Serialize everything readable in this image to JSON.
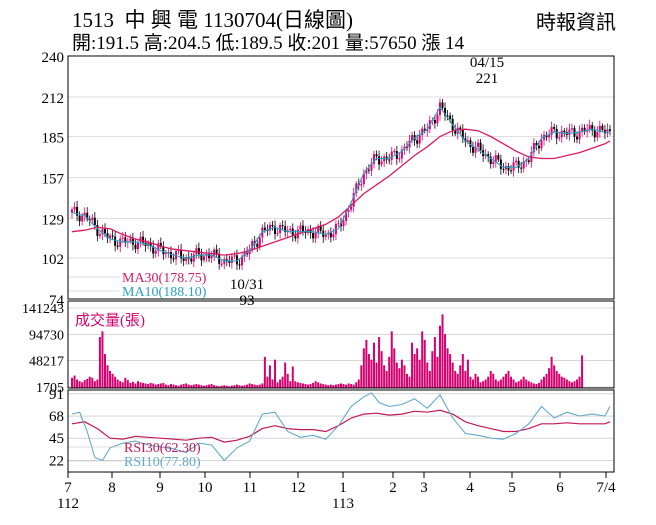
{
  "header": {
    "title": "1513  中 興 電 1130704(日線圖)",
    "source": "時報資訊",
    "ohlc": "開:191.5 高:204.5 低:189.5 收:201 量:57650 漲 14"
  },
  "colors": {
    "up": "#e0007a",
    "down": "#000000",
    "ma30": "#d81b60",
    "ma10": "#2e9fc4",
    "rsi30": "#c2185b",
    "rsi10": "#64a9c9",
    "volume": "#d6006f"
  },
  "chart_data": [
    {
      "type": "candlestick",
      "title": "",
      "ylim": [
        74,
        240
      ],
      "y_ticks": [
        240,
        212,
        185,
        157,
        129,
        102,
        74
      ],
      "legend": [
        {
          "name": "MA30(178.75)",
          "color": "#d81b60"
        },
        {
          "name": "MA10(188.10)",
          "color": "#2e9fc4"
        }
      ],
      "annotations": [
        {
          "text": "04/15",
          "x": "2024-04-15",
          "position": "above"
        },
        {
          "text": "221",
          "x": "2024-04-15",
          "position": "above"
        },
        {
          "text": "10/31",
          "x": "2023-10-31",
          "position": "below"
        },
        {
          "text": "93",
          "x": "2023-10-31",
          "position": "below"
        }
      ],
      "x_ticks": [
        "7",
        "8",
        "9",
        "10",
        "11",
        "12",
        "1",
        "2",
        "3",
        "4",
        "5",
        "6",
        "7/4"
      ],
      "x_year_labels": [
        {
          "text": "112",
          "at": "7"
        },
        {
          "text": "113",
          "at": "1"
        }
      ],
      "ma30": [
        [
          0,
          120
        ],
        [
          5,
          121
        ],
        [
          10,
          123
        ],
        [
          15,
          122
        ],
        [
          20,
          118
        ],
        [
          25,
          115
        ],
        [
          30,
          113
        ],
        [
          35,
          110
        ],
        [
          40,
          108
        ],
        [
          45,
          107
        ],
        [
          50,
          106
        ],
        [
          55,
          105
        ],
        [
          60,
          104
        ],
        [
          65,
          105
        ],
        [
          70,
          107
        ],
        [
          75,
          110
        ],
        [
          80,
          113
        ],
        [
          85,
          116
        ],
        [
          90,
          119
        ],
        [
          95,
          122
        ],
        [
          100,
          125
        ],
        [
          105,
          130
        ],
        [
          110,
          138
        ],
        [
          115,
          146
        ],
        [
          120,
          152
        ],
        [
          125,
          158
        ],
        [
          130,
          165
        ],
        [
          135,
          172
        ],
        [
          140,
          178
        ],
        [
          145,
          185
        ],
        [
          150,
          189
        ],
        [
          155,
          190
        ],
        [
          160,
          189
        ],
        [
          165,
          185
        ],
        [
          170,
          180
        ],
        [
          175,
          175
        ],
        [
          180,
          171
        ],
        [
          185,
          170
        ],
        [
          190,
          170
        ],
        [
          195,
          172
        ],
        [
          200,
          174
        ],
        [
          205,
          177
        ],
        [
          210,
          180
        ],
        [
          212,
          182
        ]
      ],
      "ma10": [
        [
          0,
          133
        ],
        [
          5,
          131
        ],
        [
          10,
          122
        ],
        [
          15,
          115
        ],
        [
          20,
          113
        ],
        [
          25,
          113
        ],
        [
          30,
          111
        ],
        [
          35,
          107
        ],
        [
          40,
          104
        ],
        [
          45,
          102
        ],
        [
          50,
          104
        ],
        [
          55,
          104
        ],
        [
          60,
          100
        ],
        [
          65,
          100
        ],
        [
          70,
          107
        ],
        [
          75,
          120
        ],
        [
          80,
          123
        ],
        [
          85,
          120
        ],
        [
          90,
          120
        ],
        [
          95,
          120
        ],
        [
          100,
          118
        ],
        [
          105,
          122
        ],
        [
          110,
          140
        ],
        [
          115,
          160
        ],
        [
          120,
          170
        ],
        [
          125,
          170
        ],
        [
          130,
          175
        ],
        [
          135,
          184
        ],
        [
          140,
          190
        ],
        [
          145,
          205
        ],
        [
          150,
          193
        ],
        [
          155,
          182
        ],
        [
          160,
          176
        ],
        [
          165,
          170
        ],
        [
          170,
          164
        ],
        [
          175,
          164
        ],
        [
          180,
          170
        ],
        [
          185,
          184
        ],
        [
          190,
          188
        ],
        [
          195,
          187
        ],
        [
          200,
          188
        ],
        [
          205,
          190
        ],
        [
          210,
          188
        ],
        [
          212,
          188
        ]
      ]
    },
    {
      "type": "bar",
      "title": "",
      "ylabel": "成交量(張)",
      "ylim": [
        0,
        141243
      ],
      "y_ticks": [
        141243,
        94730,
        48217,
        1705
      ],
      "values": [
        18000,
        22000,
        15000,
        12000,
        10000,
        14000,
        16000,
        20000,
        18000,
        12000,
        15000,
        90000,
        100000,
        60000,
        40000,
        30000,
        25000,
        20000,
        15000,
        12000,
        10000,
        18000,
        14000,
        9000,
        11000,
        8000,
        12000,
        10000,
        9000,
        8000,
        7000,
        9000,
        8000,
        6000,
        7000,
        8000,
        9000,
        6000,
        5000,
        7000,
        6000,
        5000,
        4000,
        6000,
        7000,
        8000,
        6000,
        5000,
        6000,
        7000,
        6000,
        5000,
        4000,
        5000,
        6000,
        7000,
        5000,
        4000,
        3000,
        4000,
        5000,
        4000,
        3000,
        4000,
        5000,
        6000,
        5000,
        4000,
        5000,
        6000,
        8000,
        7000,
        6000,
        5000,
        6000,
        8000,
        55000,
        20000,
        40000,
        15000,
        50000,
        10000,
        15000,
        20000,
        45000,
        25000,
        12000,
        38000,
        12000,
        10000,
        9000,
        8000,
        7000,
        6000,
        7000,
        9000,
        12000,
        10000,
        8000,
        7000,
        6000,
        5000,
        6000,
        5000,
        6000,
        7000,
        8000,
        7000,
        6000,
        8000,
        7000,
        6000,
        10000,
        15000,
        40000,
        70000,
        85000,
        60000,
        50000,
        80000,
        45000,
        90000,
        65000,
        40000,
        30000,
        55000,
        100000,
        70000,
        45000,
        35000,
        50000,
        40000,
        25000,
        20000,
        80000,
        60000,
        70000,
        50000,
        100000,
        85000,
        45000,
        30000,
        65000,
        90000,
        55000,
        110000,
        130000,
        95000,
        70000,
        60000,
        45000,
        30000,
        25000,
        40000,
        60000,
        30000,
        50000,
        20000,
        15000,
        25000,
        20000,
        10000,
        12000,
        15000,
        20000,
        30000,
        25000,
        15000,
        12000,
        15000,
        20000,
        25000,
        30000,
        20000,
        15000,
        10000,
        12000,
        15000,
        20000,
        15000,
        12000,
        10000,
        8000,
        7000,
        9000,
        15000,
        20000,
        25000,
        35000,
        55000,
        40000,
        30000,
        25000,
        20000,
        18000,
        15000,
        12000,
        10000,
        12000,
        15000,
        20000,
        57650
      ]
    },
    {
      "type": "line",
      "title": "",
      "ylim": [
        10,
        95
      ],
      "y_ticks": [
        91,
        68,
        45,
        22
      ],
      "series": [
        {
          "name": "RSI30(62.30)",
          "color": "#c2185b",
          "values": [
            [
              0,
              60
            ],
            [
              5,
              62
            ],
            [
              10,
              55
            ],
            [
              15,
              45
            ],
            [
              20,
              44
            ],
            [
              25,
              47
            ],
            [
              30,
              46
            ],
            [
              35,
              45
            ],
            [
              40,
              44
            ],
            [
              45,
              43
            ],
            [
              50,
              45
            ],
            [
              55,
              46
            ],
            [
              60,
              41
            ],
            [
              65,
              43
            ],
            [
              70,
              47
            ],
            [
              75,
              55
            ],
            [
              80,
              58
            ],
            [
              85,
              55
            ],
            [
              90,
              54
            ],
            [
              95,
              54
            ],
            [
              100,
              52
            ],
            [
              105,
              58
            ],
            [
              110,
              66
            ],
            [
              115,
              70
            ],
            [
              120,
              71
            ],
            [
              125,
              69
            ],
            [
              130,
              70
            ],
            [
              135,
              73
            ],
            [
              140,
              72
            ],
            [
              145,
              74
            ],
            [
              150,
              70
            ],
            [
              155,
              62
            ],
            [
              160,
              58
            ],
            [
              165,
              55
            ],
            [
              170,
              52
            ],
            [
              175,
              52
            ],
            [
              180,
              55
            ],
            [
              185,
              60
            ],
            [
              190,
              60
            ],
            [
              195,
              61
            ],
            [
              200,
              60
            ],
            [
              205,
              60
            ],
            [
              210,
              60
            ],
            [
              212,
              62
            ]
          ]
        },
        {
          "name": "RSI10(77.80)",
          "color": "#64a9c9",
          "values": [
            [
              0,
              70
            ],
            [
              3,
              72
            ],
            [
              6,
              52
            ],
            [
              9,
              25
            ],
            [
              12,
              22
            ],
            [
              15,
              35
            ],
            [
              20,
              40
            ],
            [
              25,
              42
            ],
            [
              30,
              38
            ],
            [
              35,
              36
            ],
            [
              40,
              34
            ],
            [
              45,
              30
            ],
            [
              50,
              40
            ],
            [
              55,
              38
            ],
            [
              60,
              22
            ],
            [
              65,
              35
            ],
            [
              70,
              42
            ],
            [
              75,
              70
            ],
            [
              80,
              72
            ],
            [
              85,
              52
            ],
            [
              90,
              46
            ],
            [
              95,
              48
            ],
            [
              100,
              44
            ],
            [
              105,
              58
            ],
            [
              110,
              78
            ],
            [
              115,
              88
            ],
            [
              118,
              92
            ],
            [
              121,
              82
            ],
            [
              125,
              78
            ],
            [
              130,
              80
            ],
            [
              135,
              86
            ],
            [
              140,
              76
            ],
            [
              145,
              90
            ],
            [
              150,
              66
            ],
            [
              155,
              50
            ],
            [
              160,
              48
            ],
            [
              165,
              45
            ],
            [
              170,
              44
            ],
            [
              175,
              50
            ],
            [
              180,
              60
            ],
            [
              185,
              78
            ],
            [
              190,
              66
            ],
            [
              195,
              72
            ],
            [
              200,
              68
            ],
            [
              205,
              70
            ],
            [
              210,
              68
            ],
            [
              212,
              78
            ]
          ]
        }
      ]
    }
  ]
}
